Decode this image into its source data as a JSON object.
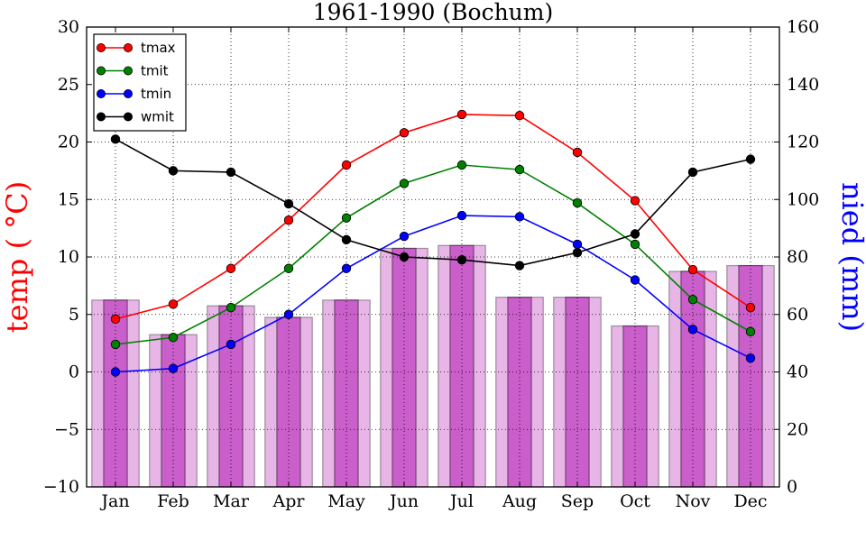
{
  "chart_data": {
    "type": "bar+line",
    "title": "1961-1990 (Bochum)",
    "categories": [
      "Jan",
      "Feb",
      "Mar",
      "Apr",
      "May",
      "Jun",
      "Jul",
      "Aug",
      "Sep",
      "Oct",
      "Nov",
      "Dec"
    ],
    "ylabel_left": "temp ( °C)",
    "ylabel_right": "nied (mm)",
    "ylim_left": [
      -10,
      30
    ],
    "ylim_right": [
      0,
      160
    ],
    "yticks_left": [
      "−10",
      "−5",
      "0",
      "5",
      "10",
      "15",
      "20",
      "25",
      "30"
    ],
    "yticks_right": [
      "0",
      "20",
      "40",
      "60",
      "80",
      "100",
      "120",
      "140",
      "160"
    ],
    "grid": true,
    "legend_position": "top-left",
    "bars": [
      {
        "name": "nied_wide",
        "axis": "right",
        "color": "#c040c0",
        "values": [
          65,
          53,
          63,
          59,
          65,
          83,
          84,
          66,
          66,
          56,
          75,
          77
        ]
      },
      {
        "name": "nied_narrow",
        "axis": "right",
        "color": "#c040c0",
        "values": [
          65,
          53,
          63,
          59,
          65,
          83,
          84,
          66,
          66,
          56,
          75,
          77
        ]
      }
    ],
    "series": [
      {
        "name": "tmax",
        "axis": "left",
        "color": "#ff0000",
        "values": [
          4.6,
          5.9,
          9.0,
          13.2,
          18.0,
          20.8,
          22.4,
          22.3,
          19.1,
          14.9,
          8.9,
          5.6
        ]
      },
      {
        "name": "tmit",
        "axis": "left",
        "color": "#008000",
        "values": [
          2.4,
          3.0,
          5.6,
          9.0,
          13.4,
          16.4,
          18.0,
          17.6,
          14.7,
          11.1,
          6.3,
          3.5
        ]
      },
      {
        "name": "tmin",
        "axis": "left",
        "color": "#0000ff",
        "values": [
          0.0,
          0.3,
          2.4,
          5.0,
          9.0,
          11.8,
          13.6,
          13.5,
          11.1,
          8.0,
          3.7,
          1.2
        ]
      },
      {
        "name": "wmit",
        "axis": "right",
        "color": "#000000",
        "values": [
          121,
          110,
          109.5,
          98.5,
          86,
          80,
          79,
          77,
          81.5,
          88,
          109.5,
          114
        ]
      }
    ],
    "legend": [
      "tmax",
      "tmit",
      "tmin",
      "wmit"
    ]
  }
}
